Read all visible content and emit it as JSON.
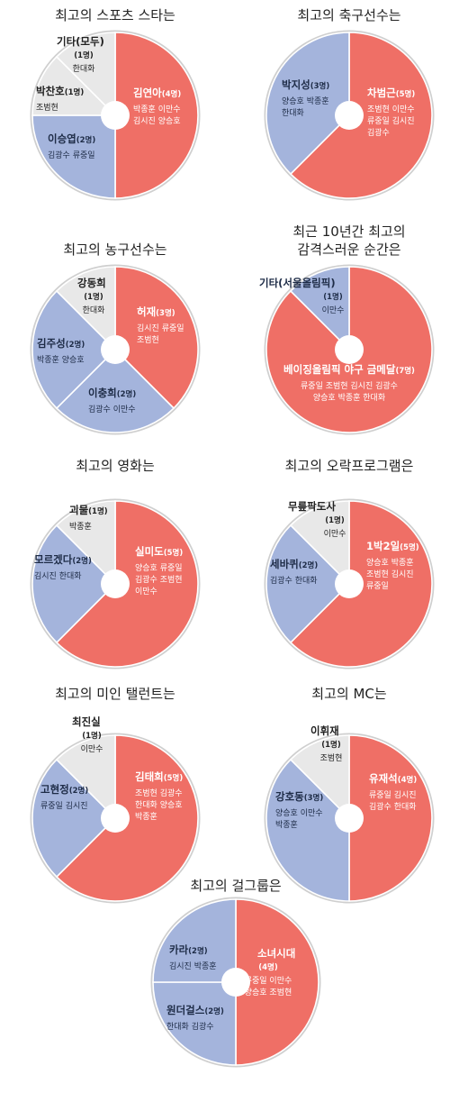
{
  "colors": {
    "red": "#ef6f66",
    "blue": "#a4b4dc",
    "gray": "#e8e8e8",
    "rim": "#cfcfcf"
  },
  "chart_data": [
    {
      "type": "pie",
      "title": [
        "최고의 스포츠 스타는"
      ],
      "unit": "명",
      "slices": [
        {
          "label": "김연아",
          "value": 4,
          "voters": [
            "박종훈 이만수",
            "김시진 양승호"
          ],
          "color": "red"
        },
        {
          "label": "이승엽",
          "value": 2,
          "voters": [
            "김광수 류중일"
          ],
          "color": "blue"
        },
        {
          "label": "박찬호",
          "value": 1,
          "voters": [
            "조범현"
          ],
          "color": "gray"
        },
        {
          "label": "기타(모두)",
          "value": 1,
          "voters": [
            "한대화"
          ],
          "color": "gray"
        }
      ]
    },
    {
      "type": "pie",
      "title": [
        "최고의 축구선수는"
      ],
      "unit": "명",
      "slices": [
        {
          "label": "차범근",
          "value": 5,
          "voters": [
            "조범현 이만수",
            "류중일 김시진",
            "김광수"
          ],
          "color": "red"
        },
        {
          "label": "박지성",
          "value": 3,
          "voters": [
            "양승호 박종훈",
            "한대화"
          ],
          "color": "blue"
        }
      ]
    },
    {
      "type": "pie",
      "title": [
        "최고의 농구선수는"
      ],
      "unit": "명",
      "slices": [
        {
          "label": "허재",
          "value": 3,
          "voters": [
            "김시진 류중일",
            "조범현"
          ],
          "color": "red"
        },
        {
          "label": "이충희",
          "value": 2,
          "voters": [
            "김광수 이만수"
          ],
          "color": "blue"
        },
        {
          "label": "김주성",
          "value": 2,
          "voters": [
            "박종훈 양승호"
          ],
          "color": "blue"
        },
        {
          "label": "강동희",
          "value": 1,
          "voters": [
            "한대화"
          ],
          "color": "gray"
        }
      ]
    },
    {
      "type": "pie",
      "title": [
        "최근 10년간 최고의",
        "감격스러운 순간은"
      ],
      "unit": "명",
      "slices": [
        {
          "label": "베이징올림픽 야구 금메달",
          "value": 7,
          "voters": [
            "류중일 조범현 김시진 김광수",
            "양승호 박종훈 한대화"
          ],
          "color": "red"
        },
        {
          "label": "기타(서울올림픽)",
          "value": 1,
          "voters": [
            "이만수"
          ],
          "color": "blue"
        }
      ]
    },
    {
      "type": "pie",
      "title": [
        "최고의 영화는"
      ],
      "unit": "명",
      "slices": [
        {
          "label": "실미도",
          "value": 5,
          "voters": [
            "양승호 류중일",
            "김광수 조범현",
            "이만수"
          ],
          "color": "red"
        },
        {
          "label": "모르겠다",
          "value": 2,
          "voters": [
            "김시진 한대화"
          ],
          "color": "blue"
        },
        {
          "label": "괴물",
          "value": 1,
          "voters": [
            "박종훈"
          ],
          "color": "gray"
        }
      ]
    },
    {
      "type": "pie",
      "title": [
        "최고의 오락프로그램은"
      ],
      "unit": "명",
      "slices": [
        {
          "label": "1박2일",
          "value": 5,
          "voters": [
            "양승호 박종훈",
            "조범현 김시진",
            "류중일"
          ],
          "color": "red"
        },
        {
          "label": "세바퀴",
          "value": 2,
          "voters": [
            "김광수 한대화"
          ],
          "color": "blue"
        },
        {
          "label": "무릎팍도사",
          "value": 1,
          "voters": [
            "이만수"
          ],
          "color": "gray"
        }
      ]
    },
    {
      "type": "pie",
      "title": [
        "최고의 미인 탤런트는"
      ],
      "unit": "명",
      "slices": [
        {
          "label": "김태희",
          "value": 5,
          "voters": [
            "조범현 김광수",
            "한대화 양승호",
            "박종훈"
          ],
          "color": "red"
        },
        {
          "label": "고현정",
          "value": 2,
          "voters": [
            "류중일 김시진"
          ],
          "color": "blue"
        },
        {
          "label": "최진실",
          "value": 1,
          "voters": [
            "이만수"
          ],
          "color": "gray"
        }
      ]
    },
    {
      "type": "pie",
      "title": [
        "최고의 MC는"
      ],
      "unit": "명",
      "slices": [
        {
          "label": "유재석",
          "value": 4,
          "voters": [
            "류중일 김시진",
            "김광수 한대화"
          ],
          "color": "red"
        },
        {
          "label": "강호동",
          "value": 3,
          "voters": [
            "양승호 이만수",
            "박종훈"
          ],
          "color": "blue"
        },
        {
          "label": "이휘재",
          "value": 1,
          "voters": [
            "조범현"
          ],
          "color": "gray"
        }
      ]
    },
    {
      "type": "pie",
      "title": [
        "최고의 걸그룹은"
      ],
      "unit": "명",
      "slices": [
        {
          "label": "소녀시대",
          "value": 4,
          "voters": [
            "류중일 이만수",
            "양승호 조범현"
          ],
          "color": "red"
        },
        {
          "label": "원더걸스",
          "value": 2,
          "voters": [
            "한대화 김광수"
          ],
          "color": "blue"
        },
        {
          "label": "카라",
          "value": 2,
          "voters": [
            "김시진 박종훈"
          ],
          "color": "blue"
        }
      ]
    }
  ]
}
